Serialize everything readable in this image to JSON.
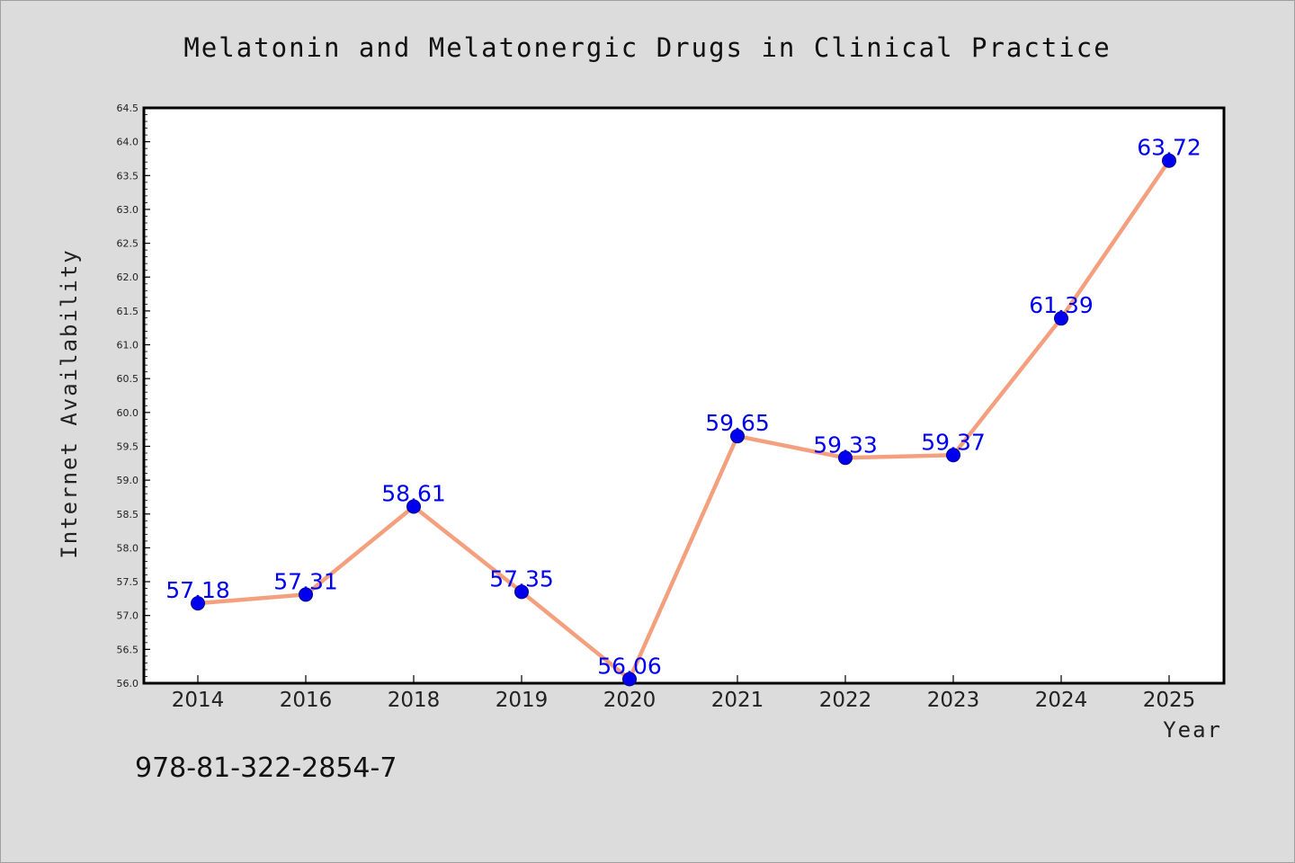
{
  "chart_data": {
    "type": "line",
    "title": "Melatonin and Melatonergic Drugs in Clinical Practice",
    "xlabel": "Year",
    "ylabel": "Internet Availability",
    "categories": [
      "2014",
      "2016",
      "2018",
      "2019",
      "2020",
      "2021",
      "2022",
      "2023",
      "2024",
      "2025"
    ],
    "values": [
      57.18,
      57.31,
      58.61,
      57.35,
      56.06,
      59.65,
      59.33,
      59.37,
      61.39,
      63.72
    ],
    "data_labels": [
      "57.18",
      "57.31",
      "58.61",
      "57.35",
      "56.06",
      "59.65",
      "59.33",
      "59.37",
      "61.39",
      "63.72"
    ],
    "ylim": [
      56.0,
      64.5
    ],
    "yticks": [
      "56.0",
      "56.5",
      "57.0",
      "57.5",
      "58.0",
      "58.5",
      "59.0",
      "59.5",
      "60.0",
      "60.5",
      "61.0",
      "61.5",
      "62.0",
      "62.5",
      "63.0",
      "63.5",
      "64.0",
      "64.5"
    ],
    "grid": false,
    "line_color": "#f4a07e",
    "marker_color": "#0000ee",
    "label_color": "#0000ee"
  },
  "footer": {
    "isbn": "978-81-322-2854-7"
  }
}
